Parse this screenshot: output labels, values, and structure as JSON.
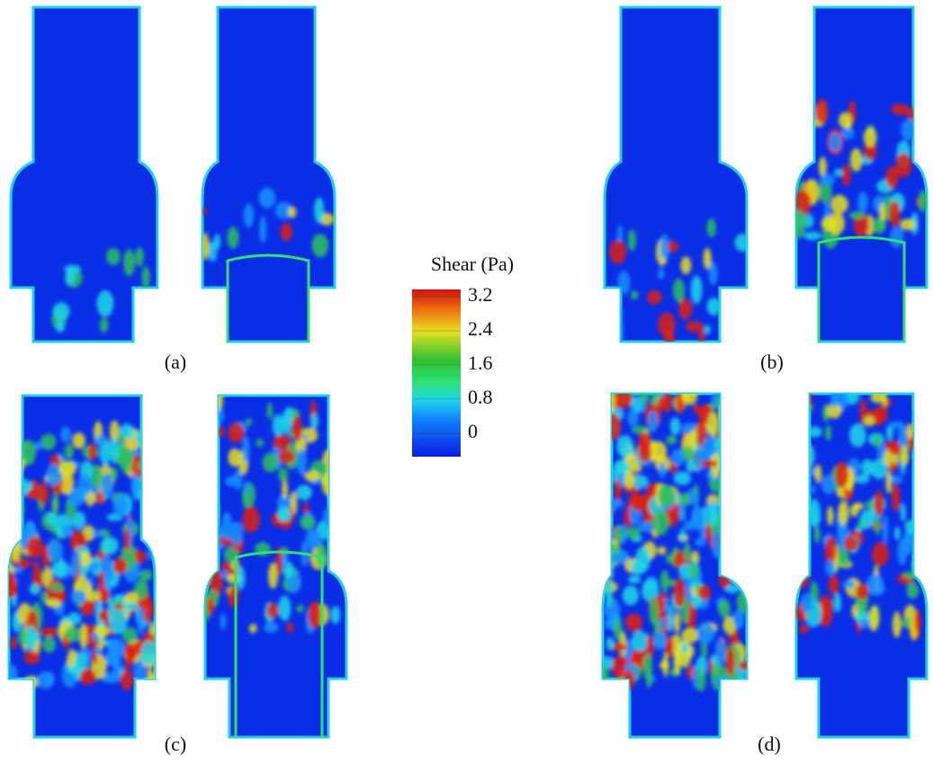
{
  "panels": [
    {
      "label": "(a)"
    },
    {
      "label": "(b)"
    },
    {
      "label": "(c)"
    },
    {
      "label": "(d)"
    }
  ],
  "colorbar": {
    "title": "Shear (Pa)",
    "range": [
      -0.55,
      3.37
    ],
    "ticks": [
      3.2,
      2.4,
      1.6,
      0.8,
      0
    ]
  }
}
